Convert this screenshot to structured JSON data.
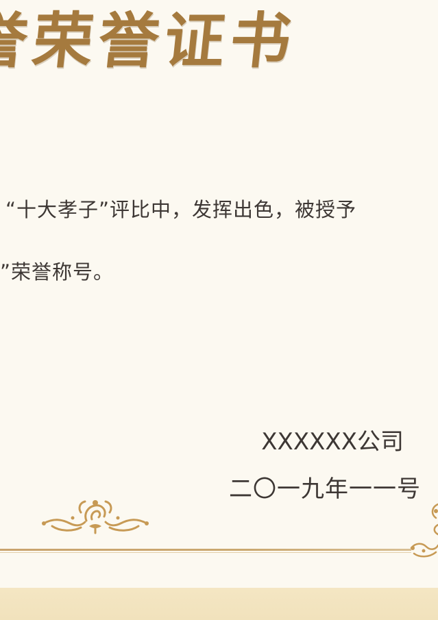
{
  "certificate": {
    "title": "誉荣誉证书",
    "body_line_1": "“十大孝子”评比中，发挥出色，被授予",
    "body_line_2": "”荣誉称号。",
    "issuer": "XXXXXX公司",
    "date": "二〇一九年一一号"
  },
  "colors": {
    "title_gold": "#a57a3e",
    "ornament_gold": "#c79a55",
    "text_dark": "#3d3734",
    "paper": "#fcf9f1",
    "band": "#f4e6c3"
  }
}
